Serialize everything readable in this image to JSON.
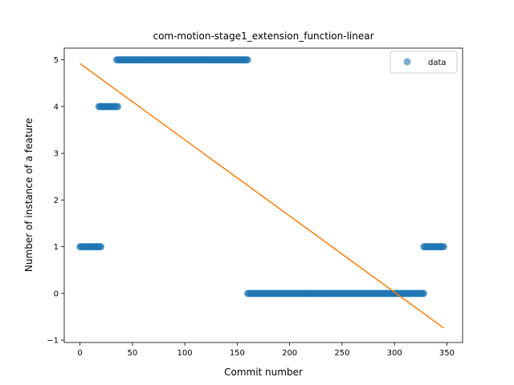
{
  "chart_data": {
    "type": "scatter",
    "title": "com-motion-stage1_extension_function-linear",
    "xlabel": "Commit number",
    "ylabel": "Number of instance of a feature",
    "xlim": [
      -15,
      365
    ],
    "ylim": [
      -1.05,
      5.25
    ],
    "xticks": [
      0,
      50,
      100,
      150,
      200,
      250,
      300,
      350
    ],
    "yticks": [
      -1,
      0,
      1,
      2,
      3,
      4,
      5
    ],
    "grid": false,
    "legend_position": "top-right",
    "legend": [
      "data"
    ],
    "colors": {
      "data": "#1f77b4",
      "fit": "#ff7f0e"
    },
    "series": [
      {
        "name": "data",
        "kind": "scatter",
        "segments": [
          {
            "x_start": 0,
            "x_end": 20,
            "y": 1
          },
          {
            "x_start": 18,
            "x_end": 36,
            "y": 4
          },
          {
            "x_start": 35,
            "x_end": 160,
            "y": 5
          },
          {
            "x_start": 160,
            "x_end": 328,
            "y": 0
          },
          {
            "x_start": 328,
            "x_end": 347,
            "y": 1
          }
        ]
      },
      {
        "kind": "line",
        "x": [
          0,
          347
        ],
        "y": [
          4.92,
          -0.74
        ]
      }
    ]
  }
}
